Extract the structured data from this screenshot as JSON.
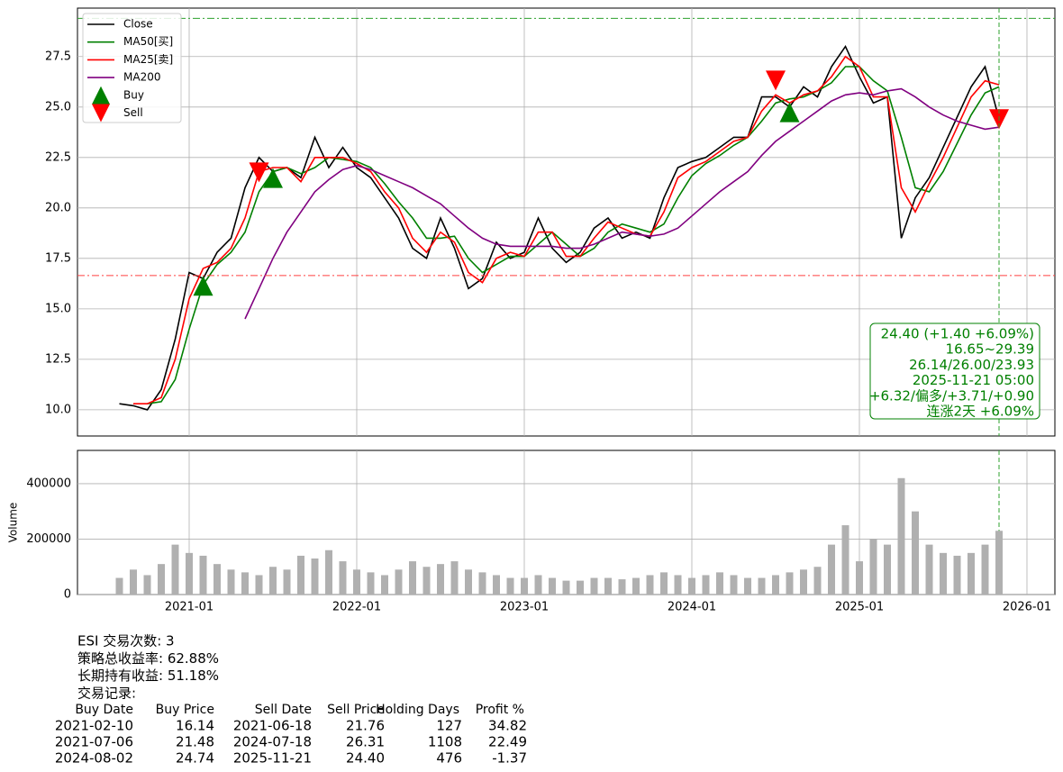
{
  "chart_data": [
    {
      "type": "line",
      "x": [
        "2020-08",
        "2020-09",
        "2020-10",
        "2020-11",
        "2020-12",
        "2021-01",
        "2021-02",
        "2021-03",
        "2021-04",
        "2021-05",
        "2021-06",
        "2021-07",
        "2021-08",
        "2021-09",
        "2021-10",
        "2021-11",
        "2021-12",
        "2022-01",
        "2022-02",
        "2022-03",
        "2022-04",
        "2022-05",
        "2022-06",
        "2022-07",
        "2022-08",
        "2022-09",
        "2022-10",
        "2022-11",
        "2022-12",
        "2023-01",
        "2023-02",
        "2023-03",
        "2023-04",
        "2023-05",
        "2023-06",
        "2023-07",
        "2023-08",
        "2023-09",
        "2023-10",
        "2023-11",
        "2023-12",
        "2024-01",
        "2024-02",
        "2024-03",
        "2024-04",
        "2024-05",
        "2024-06",
        "2024-07",
        "2024-08",
        "2024-09",
        "2024-10",
        "2024-11",
        "2024-12",
        "2025-01",
        "2025-02",
        "2025-03",
        "2025-04",
        "2025-05",
        "2025-06",
        "2025-07",
        "2025-08",
        "2025-09",
        "2025-10",
        "2025-11"
      ],
      "series": [
        {
          "name": "Close",
          "color": "#000000",
          "values": [
            10.3,
            10.2,
            10.0,
            11.0,
            13.5,
            16.8,
            16.5,
            17.8,
            18.5,
            21.0,
            22.5,
            21.8,
            22.0,
            21.5,
            23.5,
            22.0,
            23.0,
            22.0,
            21.5,
            20.5,
            19.5,
            18.0,
            17.5,
            19.5,
            18.0,
            16.0,
            16.5,
            18.3,
            17.5,
            17.8,
            19.5,
            18.0,
            17.3,
            17.8,
            19.0,
            19.5,
            18.5,
            18.8,
            18.5,
            20.5,
            22.0,
            22.3,
            22.5,
            23.0,
            23.5,
            23.5,
            25.5,
            25.5,
            25.0,
            26.0,
            25.5,
            27.0,
            28.0,
            26.5,
            25.2,
            25.5,
            18.5,
            20.5,
            21.5,
            23.0,
            24.5,
            26.0,
            27.0,
            24.4
          ]
        },
        {
          "name": "MA50[买]",
          "color": "#008000",
          "values": [
            null,
            null,
            10.3,
            10.4,
            11.5,
            14.0,
            16.2,
            17.2,
            17.8,
            18.8,
            20.8,
            21.8,
            22.0,
            21.7,
            22.0,
            22.5,
            22.4,
            22.3,
            22.0,
            21.2,
            20.3,
            19.5,
            18.5,
            18.5,
            18.6,
            17.5,
            16.8,
            17.2,
            17.6,
            17.6,
            18.2,
            18.8,
            18.2,
            17.6,
            18.0,
            18.8,
            19.2,
            19.0,
            18.8,
            19.2,
            20.5,
            21.6,
            22.2,
            22.6,
            23.1,
            23.5,
            24.3,
            25.2,
            25.4,
            25.5,
            25.8,
            26.2,
            27.0,
            27.0,
            26.3,
            25.8,
            23.5,
            21.0,
            20.8,
            21.8,
            23.2,
            24.6,
            25.7,
            26.0
          ]
        },
        {
          "name": "MA25[卖]",
          "color": "#ff0000",
          "values": [
            null,
            10.3,
            10.3,
            10.6,
            12.5,
            15.5,
            17.0,
            17.3,
            18.0,
            19.5,
            21.8,
            22.0,
            22.0,
            21.3,
            22.5,
            22.5,
            22.5,
            22.2,
            21.8,
            20.8,
            20.0,
            18.5,
            17.8,
            18.8,
            18.3,
            16.8,
            16.3,
            17.5,
            17.8,
            17.6,
            18.8,
            18.8,
            17.6,
            17.6,
            18.5,
            19.3,
            19.0,
            18.7,
            18.6,
            19.8,
            21.5,
            22.0,
            22.3,
            22.8,
            23.3,
            23.5,
            24.8,
            25.6,
            25.2,
            25.6,
            25.8,
            26.5,
            27.5,
            27.0,
            25.5,
            25.5,
            21.0,
            19.8,
            21.2,
            22.5,
            24.0,
            25.5,
            26.3,
            26.1
          ]
        },
        {
          "name": "MA200",
          "color": "#800080",
          "values": [
            null,
            null,
            null,
            null,
            null,
            null,
            null,
            null,
            null,
            14.5,
            16.0,
            17.5,
            18.8,
            19.8,
            20.8,
            21.4,
            21.9,
            22.1,
            21.9,
            21.6,
            21.3,
            21.0,
            20.6,
            20.2,
            19.6,
            19.0,
            18.5,
            18.2,
            18.1,
            18.1,
            18.1,
            18.1,
            18.0,
            18.0,
            18.2,
            18.5,
            18.8,
            18.7,
            18.6,
            18.7,
            19.0,
            19.6,
            20.2,
            20.8,
            21.3,
            21.8,
            22.6,
            23.3,
            23.8,
            24.3,
            24.8,
            25.3,
            25.6,
            25.7,
            25.6,
            25.8,
            25.9,
            25.5,
            25.0,
            24.6,
            24.3,
            24.1,
            23.9,
            24.0
          ]
        },
        {
          "name": "Buy",
          "color": "#008000",
          "marker": "triangle-up",
          "x": [
            "2021-02",
            "2021-07",
            "2024-08"
          ],
          "values": [
            16.14,
            21.48,
            24.74
          ]
        },
        {
          "name": "Sell",
          "color": "#ff0000",
          "marker": "triangle-down",
          "x": [
            "2021-06",
            "2024-07",
            "2025-11"
          ],
          "values": [
            21.76,
            26.31,
            24.4
          ]
        }
      ],
      "xlim": [
        "2020-05",
        "2026-03"
      ],
      "xticks": [
        "2021-01",
        "2022-01",
        "2023-01",
        "2024-01",
        "2025-01",
        "2026-01"
      ],
      "ylim": [
        8.7,
        29.9
      ],
      "yticks": [
        {
          "value": 10,
          "label": "10.0"
        },
        12.5,
        {
          "value": 15,
          "label": "15.0"
        },
        17.5,
        {
          "value": 20,
          "label": "20.0"
        },
        22.5,
        {
          "value": 25,
          "label": "25.0"
        },
        27.5
      ],
      "grid": true,
      "legend": "upper-left",
      "hlines": [
        {
          "value": 29.39,
          "color": "#2ca02c"
        },
        {
          "value": 16.65,
          "color": "#ff4040"
        }
      ],
      "vline": {
        "x": "2025-11",
        "color": "#2ca02c"
      },
      "annotation": {
        "color": "#008000",
        "lines": [
          "24.40 (+1.40 +6.09%)",
          "16.65~29.39",
          "26.14/26.00/23.93",
          "2025-11-21 05:00",
          "+6.32/偏多/+3.71/+0.90",
          "连涨2天 +6.09%"
        ]
      }
    },
    {
      "type": "bar",
      "y_label": "Volume",
      "color": "#b0b0b0",
      "x": [
        "2020-08",
        "2020-09",
        "2020-10",
        "2020-11",
        "2020-12",
        "2021-01",
        "2021-02",
        "2021-03",
        "2021-04",
        "2021-05",
        "2021-06",
        "2021-07",
        "2021-08",
        "2021-09",
        "2021-10",
        "2021-11",
        "2021-12",
        "2022-01",
        "2022-02",
        "2022-03",
        "2022-04",
        "2022-05",
        "2022-06",
        "2022-07",
        "2022-08",
        "2022-09",
        "2022-10",
        "2022-11",
        "2022-12",
        "2023-01",
        "2023-02",
        "2023-03",
        "2023-04",
        "2023-05",
        "2023-06",
        "2023-07",
        "2023-08",
        "2023-09",
        "2023-10",
        "2023-11",
        "2023-12",
        "2024-01",
        "2024-02",
        "2024-03",
        "2024-04",
        "2024-05",
        "2024-06",
        "2024-07",
        "2024-08",
        "2024-09",
        "2024-10",
        "2024-11",
        "2024-12",
        "2025-01",
        "2025-02",
        "2025-03",
        "2025-04",
        "2025-05",
        "2025-06",
        "2025-07",
        "2025-08",
        "2025-09",
        "2025-10",
        "2025-11"
      ],
      "values": [
        60000,
        90000,
        70000,
        110000,
        180000,
        150000,
        140000,
        110000,
        90000,
        80000,
        70000,
        100000,
        90000,
        140000,
        130000,
        160000,
        120000,
        90000,
        80000,
        70000,
        90000,
        120000,
        100000,
        110000,
        120000,
        90000,
        80000,
        70000,
        60000,
        60000,
        70000,
        60000,
        50000,
        50000,
        60000,
        60000,
        55000,
        60000,
        70000,
        80000,
        70000,
        60000,
        70000,
        80000,
        70000,
        60000,
        60000,
        70000,
        80000,
        90000,
        100000,
        180000,
        250000,
        120000,
        200000,
        180000,
        420000,
        300000,
        180000,
        150000,
        140000,
        150000,
        180000,
        230000
      ],
      "xlim": [
        "2020-05",
        "2026-03"
      ],
      "xticks": [
        "2021-01",
        "2022-01",
        "2023-01",
        "2024-01",
        "2025-01",
        "2026-01"
      ],
      "ylim": [
        0,
        520000
      ],
      "yticks": [
        0,
        200000,
        400000
      ],
      "grid": true
    }
  ],
  "summary": {
    "lines": [
      "ESI 交易次数: 3",
      "策略总收益率: 62.88%",
      "长期持有收益: 51.18%",
      "交易记录:"
    ],
    "trades": {
      "header": [
        "Buy Date",
        "Buy Price",
        "Sell Date",
        "Sell Price",
        "Holding Days",
        "Profit %"
      ],
      "rows": [
        [
          "2021-02-10",
          "16.14",
          "2021-06-18",
          "21.76",
          "127",
          "34.82"
        ],
        [
          "2021-07-06",
          "21.48",
          "2024-07-18",
          "26.31",
          "1108",
          "22.49"
        ],
        [
          "2024-08-02",
          "24.74",
          "2025-11-21",
          "24.40",
          "476",
          "-1.37"
        ]
      ]
    }
  }
}
